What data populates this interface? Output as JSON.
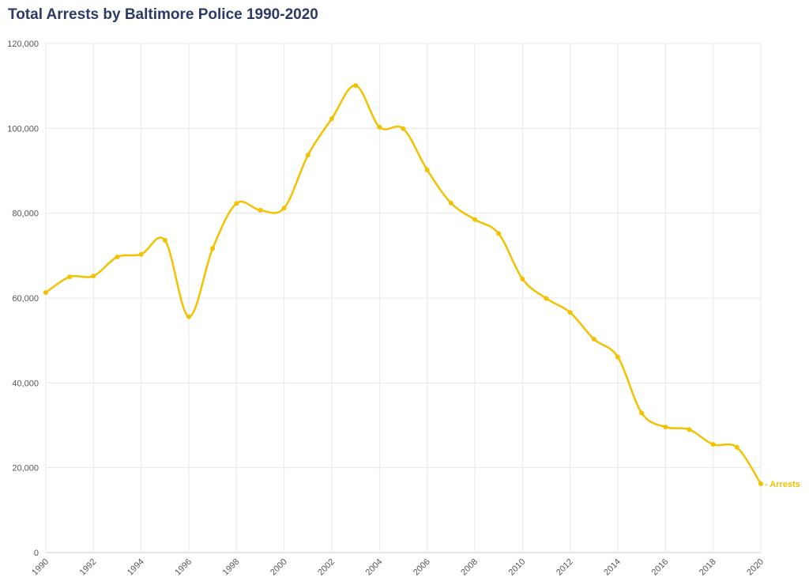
{
  "chart_data": {
    "type": "line",
    "title": "Total Arrests by Baltimore Police 1990-2020",
    "xlabel": "",
    "ylabel": "",
    "x": [
      1990,
      1991,
      1992,
      1993,
      1994,
      1995,
      1996,
      1997,
      1998,
      1999,
      2000,
      2001,
      2002,
      2003,
      2004,
      2005,
      2006,
      2007,
      2008,
      2009,
      2010,
      2011,
      2012,
      2013,
      2014,
      2015,
      2016,
      2017,
      2018,
      2019,
      2020
    ],
    "series": [
      {
        "name": "Arrests",
        "color": "#f2c200",
        "values": [
          61300,
          65000,
          65200,
          69700,
          70300,
          73600,
          55600,
          71700,
          82300,
          80700,
          81200,
          93700,
          102300,
          110100,
          100300,
          99900,
          90200,
          82400,
          78500,
          75200,
          64500,
          59900,
          56600,
          50300,
          46100,
          32900,
          29600,
          29000,
          25500,
          24800,
          16200
        ]
      }
    ],
    "xlim": [
      1990,
      2020
    ],
    "ylim": [
      0,
      120000
    ],
    "x_ticks": [
      "1990",
      "1992",
      "1994",
      "1996",
      "1998",
      "2000",
      "2002",
      "2004",
      "2006",
      "2008",
      "2010",
      "2012",
      "2014",
      "2016",
      "2018",
      "2020"
    ],
    "y_ticks": [
      "0",
      "20,000",
      "40,000",
      "60,000",
      "80,000",
      "100,000",
      "120,000"
    ],
    "grid": true,
    "legend": "inline-end-label"
  }
}
